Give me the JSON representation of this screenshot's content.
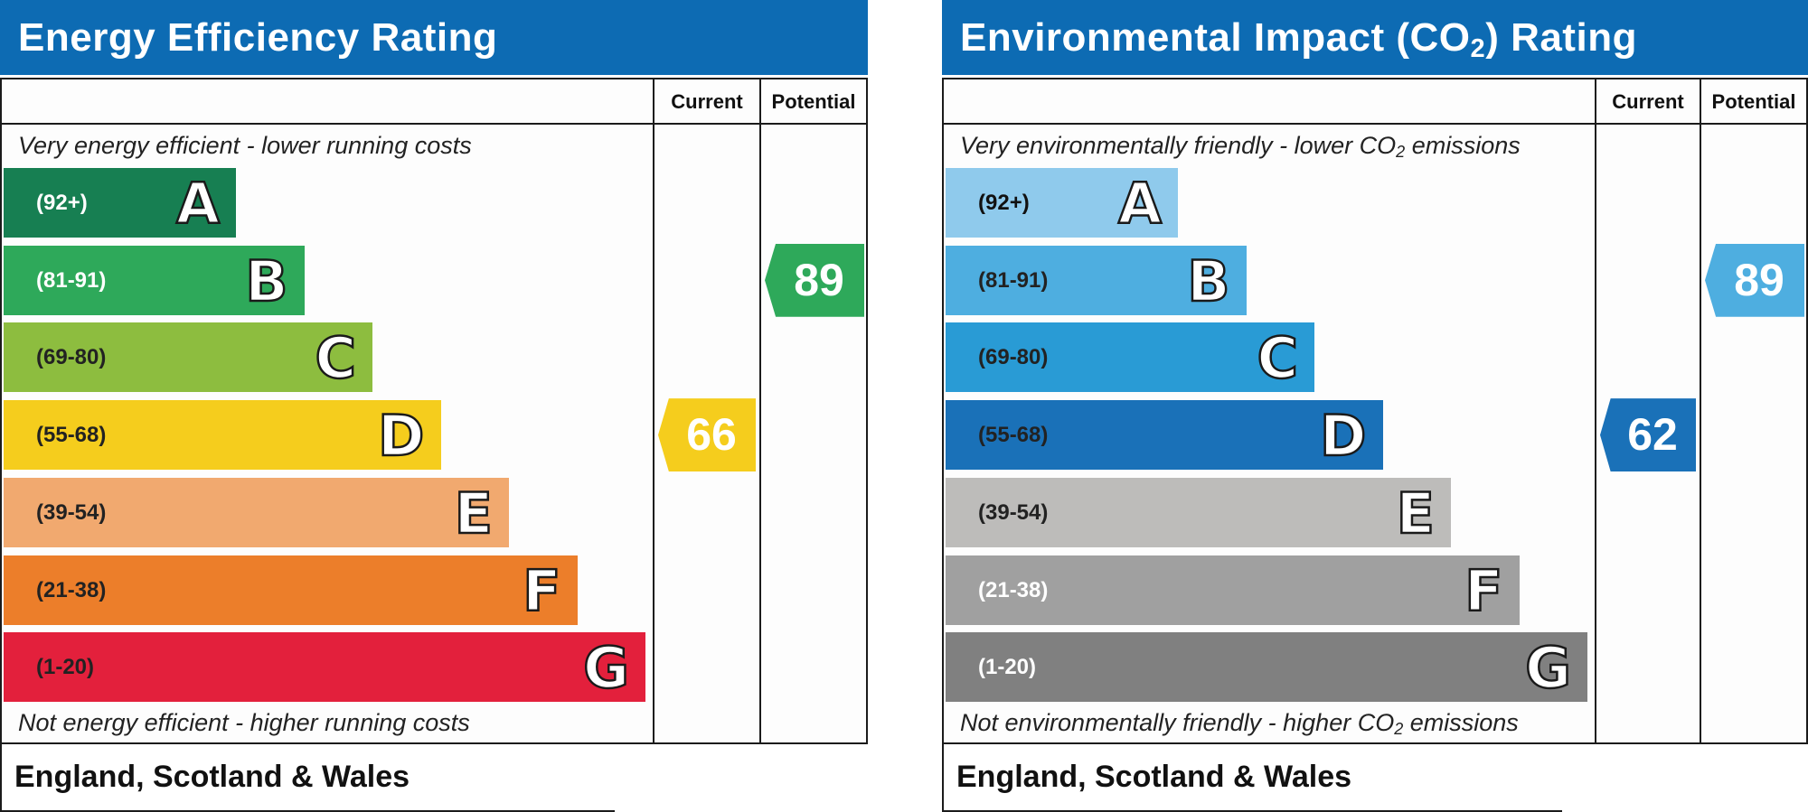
{
  "chart_data": [
    {
      "type": "bar",
      "title": "Energy Efficiency Rating",
      "columns": [
        "Current",
        "Potential"
      ],
      "top_note": "Very energy efficient - lower running costs",
      "bottom_note": "Not energy efficient - higher running costs",
      "footer": "England, Scotland & Wales",
      "bands": [
        {
          "letter": "A",
          "range": "(92+)",
          "color": "#177f52",
          "text_color": "#ffffff"
        },
        {
          "letter": "B",
          "range": "(81-91)",
          "color": "#2ea95a",
          "text_color": "#ffffff"
        },
        {
          "letter": "C",
          "range": "(69-80)",
          "color": "#8dbd3f",
          "text_color": "#222222"
        },
        {
          "letter": "D",
          "range": "(55-68)",
          "color": "#f5cd1d",
          "text_color": "#222222"
        },
        {
          "letter": "E",
          "range": "(39-54)",
          "color": "#f1a96f",
          "text_color": "#222222"
        },
        {
          "letter": "F",
          "range": "(21-38)",
          "color": "#ec7e2a",
          "text_color": "#222222"
        },
        {
          "letter": "G",
          "range": "(1-20)",
          "color": "#e3203c",
          "text_color": "#222222"
        }
      ],
      "current": {
        "value": "66",
        "band": "D",
        "color": "#f5cd1d"
      },
      "potential": {
        "value": "89",
        "band": "B",
        "color": "#2ea95a"
      }
    },
    {
      "type": "bar",
      "title": "Environmental Impact (CO",
      "title_sub": "2",
      "title_end": ") Rating",
      "columns": [
        "Current",
        "Potential"
      ],
      "top_note": "Very environmentally friendly - lower CO",
      "top_note_sub": "2",
      "top_note_end": " emissions",
      "bottom_note": "Not environmentally friendly - higher CO",
      "bottom_note_sub": "2",
      "bottom_note_end": " emissions",
      "footer": "England, Scotland & Wales",
      "bands": [
        {
          "letter": "A",
          "range": "(92+)",
          "color": "#8fcaec",
          "text_color": "#111111"
        },
        {
          "letter": "B",
          "range": "(81-91)",
          "color": "#4eaee0",
          "text_color": "#222222"
        },
        {
          "letter": "C",
          "range": "(69-80)",
          "color": "#299bd5",
          "text_color": "#222222"
        },
        {
          "letter": "D",
          "range": "(55-68)",
          "color": "#1a71b8",
          "text_color": "#222222"
        },
        {
          "letter": "E",
          "range": "(39-54)",
          "color": "#bdbcba",
          "text_color": "#222222"
        },
        {
          "letter": "F",
          "range": "(21-38)",
          "color": "#a0a0a0",
          "text_color": "#ffffff"
        },
        {
          "letter": "G",
          "range": "(1-20)",
          "color": "#808080",
          "text_color": "#ffffff"
        }
      ],
      "current": {
        "value": "62",
        "band": "D",
        "color": "#1a71b8"
      },
      "potential": {
        "value": "89",
        "band": "B",
        "color": "#4eaee0"
      }
    }
  ]
}
